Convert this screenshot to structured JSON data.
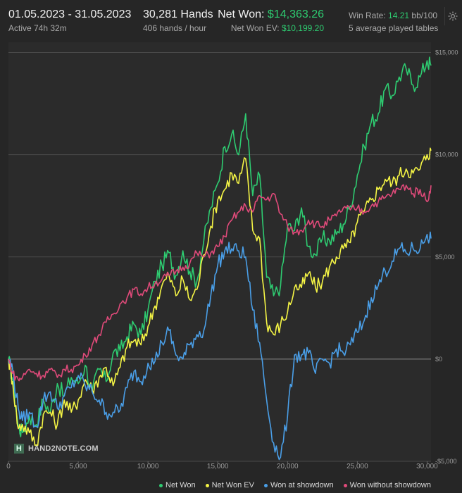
{
  "header": {
    "date_range": "01.05.2023 - 31.05.2023",
    "active": "Active 74h 32m",
    "hands": "30,281 Hands",
    "hands_per_hour": "406 hands / hour",
    "net_won_label": "Net Won:",
    "net_won_value": "$14,363.26",
    "net_won_ev_label": "Net Won  EV:",
    "net_won_ev_value": "$10,199.20",
    "win_rate_label": "Win Rate:",
    "win_rate_value": "14.21",
    "win_rate_unit": "bb/100",
    "tables": "5 average played tables"
  },
  "logo": {
    "text": "HAND2NOTE.COM",
    "mark": "H"
  },
  "icons": {
    "settings": "gear-icon"
  },
  "colors": {
    "net_won": "#2ecc71",
    "net_won_ev": "#f5f545",
    "won_showdown": "#4a9fe8",
    "won_no_showdown": "#e04a7a"
  },
  "chart_data": {
    "type": "line",
    "xlim": [
      0,
      30281
    ],
    "ylim": [
      -5000,
      15500
    ],
    "x_ticks": [
      0,
      5000,
      10000,
      15000,
      20000,
      25000,
      30000
    ],
    "x_tick_labels": [
      "0",
      "5,000",
      "10,000",
      "15,000",
      "20,000",
      "25,000",
      "30,000"
    ],
    "y_ticks": [
      -5000,
      0,
      5000,
      10000,
      15000
    ],
    "y_tick_labels": [
      "-$5,000",
      "$0",
      "$5,000",
      "$10,000",
      "$15,000"
    ],
    "grid": true,
    "legend": "bottom-right",
    "series": [
      {
        "name": "Net Won",
        "x": [
          0,
          300,
          700,
          1000,
          1500,
          2000,
          2500,
          3000,
          3500,
          4000,
          4500,
          5000,
          5500,
          6000,
          6500,
          7000,
          7500,
          8000,
          8500,
          9000,
          9500,
          10000,
          10500,
          11000,
          11500,
          12000,
          12500,
          13000,
          13500,
          14000,
          14500,
          15000,
          15500,
          16000,
          16500,
          17000,
          17500,
          18000,
          18500,
          19000,
          19500,
          20000,
          20500,
          21000,
          21500,
          22000,
          22500,
          23000,
          23500,
          24000,
          24500,
          25000,
          25500,
          26000,
          26500,
          27000,
          27500,
          28000,
          28500,
          29000,
          29500,
          30000,
          30281
        ],
        "y": [
          0,
          -1000,
          -3300,
          -3600,
          -2800,
          -3200,
          -2000,
          -2600,
          -1200,
          -1800,
          -900,
          -1200,
          -300,
          -1600,
          -500,
          -1100,
          300,
          400,
          1100,
          1700,
          1200,
          2400,
          3800,
          4600,
          5200,
          4100,
          5300,
          4300,
          3800,
          5800,
          7400,
          8600,
          10400,
          11000,
          10000,
          12000,
          8000,
          9000,
          4000,
          3100,
          3600,
          6500,
          6300,
          7400,
          5500,
          5100,
          5900,
          5800,
          6100,
          6600,
          7500,
          9000,
          10400,
          11600,
          12000,
          13200,
          12900,
          13800,
          14200,
          13400,
          13800,
          14600,
          14363
        ]
      },
      {
        "name": "Net Won  EV",
        "x": [
          0,
          300,
          700,
          1000,
          1500,
          2000,
          2500,
          3000,
          3500,
          4000,
          4500,
          5000,
          5500,
          6000,
          6500,
          7000,
          7500,
          8000,
          8500,
          9000,
          9500,
          10000,
          10500,
          11000,
          11500,
          12000,
          12500,
          13000,
          13500,
          14000,
          14500,
          15000,
          15500,
          16000,
          16500,
          17000,
          17500,
          18000,
          18500,
          19000,
          19500,
          20000,
          20500,
          21000,
          21500,
          22000,
          22500,
          23000,
          23500,
          24000,
          24500,
          25000,
          25500,
          26000,
          26500,
          27000,
          27500,
          28000,
          28500,
          29000,
          29500,
          30000,
          30281
        ],
        "y": [
          0,
          -1100,
          -3400,
          -3200,
          -3600,
          -4200,
          -2700,
          -2600,
          -3200,
          -2000,
          -2600,
          -2000,
          -1000,
          -1500,
          -900,
          -400,
          -1300,
          -400,
          600,
          900,
          700,
          1600,
          2600,
          3600,
          4100,
          3100,
          3900,
          2900,
          3400,
          5100,
          6500,
          7800,
          8300,
          9100,
          8600,
          9800,
          6300,
          5900,
          1800,
          1200,
          1700,
          2300,
          3500,
          3500,
          4200,
          3500,
          3800,
          4500,
          5000,
          5400,
          5700,
          6700,
          7200,
          7800,
          8300,
          8800,
          8600,
          9000,
          9300,
          9100,
          9300,
          10000,
          10199
        ]
      },
      {
        "name": "Won at showdown",
        "x": [
          0,
          300,
          700,
          1000,
          1500,
          2000,
          2500,
          3000,
          3500,
          4000,
          4500,
          5000,
          5500,
          6000,
          6500,
          7000,
          7500,
          8000,
          8500,
          9000,
          9500,
          10000,
          10500,
          11000,
          11500,
          12000,
          12500,
          13000,
          13500,
          14000,
          14500,
          15000,
          15500,
          16000,
          16500,
          17000,
          17500,
          18000,
          18500,
          19000,
          19500,
          20000,
          20500,
          21000,
          21500,
          22000,
          22500,
          23000,
          23500,
          24000,
          24500,
          25000,
          25500,
          26000,
          26500,
          27000,
          27500,
          28000,
          28500,
          29000,
          29500,
          30000,
          30281
        ],
        "y": [
          0,
          -500,
          -2400,
          -3000,
          -2600,
          -3300,
          -2000,
          -1600,
          -2400,
          -1800,
          -1400,
          -800,
          -1300,
          -1600,
          -2000,
          -2600,
          -2600,
          -2500,
          -1400,
          -600,
          -1100,
          -200,
          -100,
          800,
          1400,
          200,
          0,
          700,
          1200,
          1400,
          3100,
          4600,
          5300,
          5400,
          5300,
          5000,
          2400,
          800,
          -2000,
          -4100,
          -4800,
          -2800,
          200,
          200,
          300,
          -700,
          0,
          -200,
          500,
          300,
          700,
          1300,
          1900,
          3000,
          3600,
          4300,
          4800,
          5400,
          5200,
          5400,
          5400,
          6100,
          5900
        ]
      },
      {
        "name": "Won without showdown",
        "x": [
          0,
          300,
          700,
          1000,
          1500,
          2000,
          2500,
          3000,
          3500,
          4000,
          4500,
          5000,
          5500,
          6000,
          6500,
          7000,
          7500,
          8000,
          8500,
          9000,
          9500,
          10000,
          10500,
          11000,
          11500,
          12000,
          12500,
          13000,
          13500,
          14000,
          14500,
          15000,
          15500,
          16000,
          16500,
          17000,
          17500,
          18000,
          18500,
          19000,
          19500,
          20000,
          20500,
          21000,
          21500,
          22000,
          22500,
          23000,
          23500,
          24000,
          24500,
          25000,
          25500,
          26000,
          26500,
          27000,
          27500,
          28000,
          28500,
          29000,
          29500,
          30000,
          30281
        ],
        "y": [
          0,
          -700,
          -1000,
          -900,
          -500,
          -700,
          -800,
          -500,
          -900,
          -500,
          -500,
          -300,
          200,
          700,
          1200,
          1800,
          2200,
          2700,
          3000,
          3400,
          3200,
          3500,
          3700,
          3900,
          4100,
          4300,
          4500,
          4700,
          5200,
          5000,
          5200,
          5500,
          6000,
          6800,
          7200,
          7500,
          7200,
          8000,
          7800,
          8100,
          7100,
          6500,
          6200,
          6300,
          6800,
          6600,
          6500,
          6800,
          7000,
          7400,
          7300,
          7400,
          7200,
          7500,
          7700,
          7900,
          8100,
          8300,
          8500,
          8100,
          8300,
          7700,
          8500
        ]
      }
    ]
  }
}
